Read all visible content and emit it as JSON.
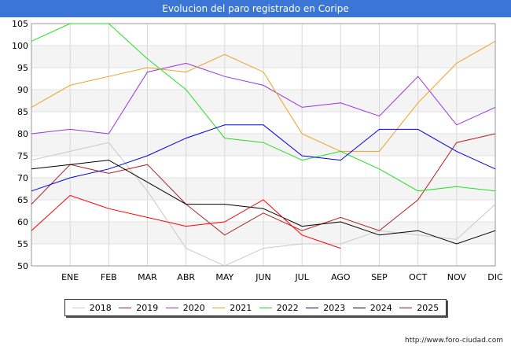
{
  "title": "Evolucion del paro registrado en Coripe",
  "source": "http://www.foro-ciudad.com",
  "chart_data": {
    "type": "line",
    "categories": [
      "",
      "ENE",
      "FEB",
      "MAR",
      "ABR",
      "MAY",
      "JUN",
      "JUL",
      "AGO",
      "SEP",
      "OCT",
      "NOV",
      "DIC"
    ],
    "ylim": [
      50,
      105
    ],
    "yticks": [
      50,
      55,
      60,
      65,
      70,
      75,
      80,
      85,
      90,
      95,
      100,
      105
    ],
    "grid": true,
    "legend": "bottom",
    "series": [
      {
        "name": "2018",
        "color": "#c8c8c8",
        "values": [
          74,
          76,
          78,
          67,
          54,
          50,
          54,
          55,
          55,
          58,
          57,
          56,
          64
        ]
      },
      {
        "name": "2019",
        "color": "#b22222",
        "values": [
          64,
          73,
          71,
          73,
          64,
          57,
          62,
          58,
          61,
          58,
          65,
          78,
          80
        ]
      },
      {
        "name": "2020",
        "color": "#9a32e0",
        "values": [
          80,
          81,
          80,
          94,
          96,
          93,
          91,
          86,
          87,
          84,
          93,
          82,
          86
        ]
      },
      {
        "name": "2021",
        "color": "#f0a020",
        "values": [
          86,
          91,
          93,
          95,
          94,
          98,
          94,
          80,
          76,
          76,
          87,
          96,
          101
        ]
      },
      {
        "name": "2022",
        "color": "#22e022",
        "values": [
          101,
          105,
          105,
          97,
          90,
          79,
          78,
          74,
          76,
          72,
          67,
          68,
          67
        ]
      },
      {
        "name": "2023",
        "color": "#0000ee",
        "values": [
          67,
          70,
          72,
          75,
          79,
          82,
          82,
          75,
          74,
          81,
          81,
          76,
          72
        ]
      },
      {
        "name": "2024",
        "color": "#000000",
        "values": [
          72,
          73,
          74,
          69,
          64,
          64,
          63,
          59,
          60,
          57,
          58,
          55,
          58
        ]
      },
      {
        "name": "2025",
        "color": "#ff0000",
        "values": [
          58,
          66,
          63,
          61,
          59,
          60,
          65,
          57,
          54,
          null,
          null,
          null,
          null
        ]
      }
    ]
  }
}
